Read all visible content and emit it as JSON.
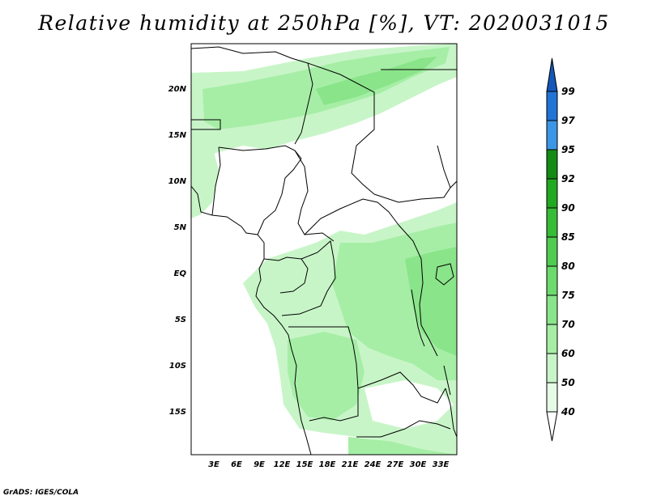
{
  "title": "Relative humidity at 250hPa [%], VT: 2020031015",
  "credit": "GrADS: IGES/COLA",
  "map": {
    "lat_labels": [
      "20N",
      "15N",
      "10N",
      "5N",
      "EQ",
      "5S",
      "10S",
      "15S"
    ],
    "lon_labels": [
      "3E",
      "6E",
      "9E",
      "12E",
      "15E",
      "18E",
      "21E",
      "24E",
      "27E",
      "30E",
      "33E"
    ]
  },
  "colorbar": {
    "levels": [
      "40",
      "50",
      "60",
      "70",
      "75",
      "80",
      "85",
      "90",
      "92",
      "95",
      "97",
      "99"
    ],
    "colors": [
      "#ffffff",
      "#e6fbe6",
      "#c8f5c8",
      "#a6eea6",
      "#8ae48a",
      "#6cda6c",
      "#50cc50",
      "#36bc36",
      "#22a822",
      "#148c14",
      "#3c96e6",
      "#2273d6",
      "#1457b8"
    ]
  }
}
